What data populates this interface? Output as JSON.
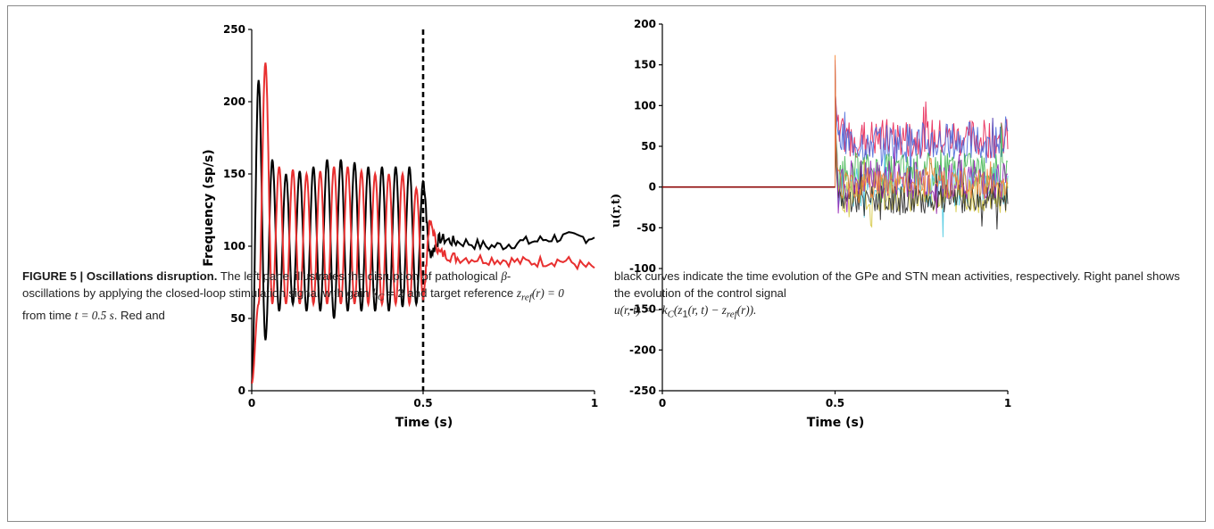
{
  "chart_data": [
    {
      "type": "line",
      "title": "",
      "xlabel": "Time (s)",
      "ylabel": "Frequency (sp/s)",
      "xlim": [
        0,
        1
      ],
      "ylim": [
        0,
        250
      ],
      "xticks": [
        "0",
        "0.5",
        "1"
      ],
      "yticks": [
        "0",
        "50",
        "100",
        "150",
        "200",
        "250"
      ],
      "grid": false,
      "legend": "none",
      "annotations": [
        {
          "type": "vertical-dashed-line",
          "x": 0.5
        }
      ],
      "series": [
        {
          "color": "#000000",
          "description_source": "caption: STN mean activity",
          "x": [
            0,
            0.02,
            0.04,
            0.06,
            0.08,
            0.1,
            0.12,
            0.14,
            0.16,
            0.18,
            0.2,
            0.22,
            0.24,
            0.26,
            0.28,
            0.3,
            0.32,
            0.34,
            0.36,
            0.38,
            0.4,
            0.42,
            0.44,
            0.46,
            0.48,
            0.5,
            0.52,
            0.55,
            0.6,
            0.7,
            0.8,
            0.9,
            1.0
          ],
          "y": [
            5,
            215,
            35,
            160,
            55,
            150,
            60,
            152,
            55,
            155,
            55,
            160,
            50,
            160,
            55,
            158,
            55,
            155,
            55,
            155,
            55,
            155,
            58,
            155,
            60,
            145,
            95,
            105,
            103,
            100,
            103,
            106,
            106
          ]
        },
        {
          "color": "#e83030",
          "description_source": "caption: GPe mean activity",
          "x": [
            0,
            0.02,
            0.04,
            0.06,
            0.08,
            0.1,
            0.12,
            0.14,
            0.16,
            0.18,
            0.2,
            0.22,
            0.24,
            0.26,
            0.28,
            0.3,
            0.32,
            0.34,
            0.36,
            0.38,
            0.4,
            0.42,
            0.44,
            0.46,
            0.48,
            0.5,
            0.52,
            0.55,
            0.6,
            0.7,
            0.8,
            0.9,
            1.0
          ],
          "y": [
            5,
            60,
            227,
            60,
            155,
            60,
            153,
            60,
            150,
            60,
            152,
            60,
            155,
            60,
            155,
            60,
            152,
            60,
            150,
            60,
            150,
            60,
            150,
            60,
            140,
            65,
            115,
            95,
            92,
            91,
            89,
            90,
            85
          ]
        }
      ]
    },
    {
      "type": "line",
      "title": "",
      "xlabel": "Time (s)",
      "ylabel": "u(r,t)",
      "xlim": [
        0,
        1
      ],
      "ylim": [
        -250,
        200
      ],
      "xticks": [
        "0",
        "0.5",
        "1"
      ],
      "yticks": [
        "200",
        "150",
        "100",
        "50",
        "0",
        "-50",
        "-100",
        "-150",
        "-200",
        "-250"
      ],
      "grid": false,
      "legend": "none",
      "description": "Control signal is 0 until t = 0.5 s, then many noisy traces (roughly -80 to 185) in multiple colors",
      "series_colors": [
        "#e6194b",
        "#4363d8",
        "#3cb44b",
        "#46c8e0",
        "#d4c63a",
        "#222222",
        "#911eb4",
        "#f58231"
      ],
      "x_start": 0.5,
      "range_after_start": [
        -80,
        185
      ]
    }
  ],
  "caption": {
    "figure_label": "FIGURE 5 | Oscillations disruption.",
    "left_text_1": " The left panel illustrates the disruption of pathological ",
    "beta": "β",
    "left_text_2": "-oscillations by applying the closed-loop stimulation signal with gain ",
    "gain_eq": "k",
    "gain_sub": "C",
    "gain_val": " = 2",
    "left_text_3": " and target reference ",
    "zref": "z",
    "zref_sub": "ref",
    "zref_val": "(r) = 0",
    "left_text_4": " from time ",
    "t_eq": "t = 0.5 s",
    "left_text_5": ". Red and",
    "right_text_1": "black curves indicate the time evolution of the GPe and STN mean activities, respectively. Right panel shows the evolution of the control signal",
    "formula": "u(r, t) = −k",
    "formula_sub": "C",
    "formula_mid": "(z",
    "formula_sub2": "1",
    "formula_mid2": "(r, t) − z",
    "formula_sub3": "ref",
    "formula_end": "(r))."
  }
}
